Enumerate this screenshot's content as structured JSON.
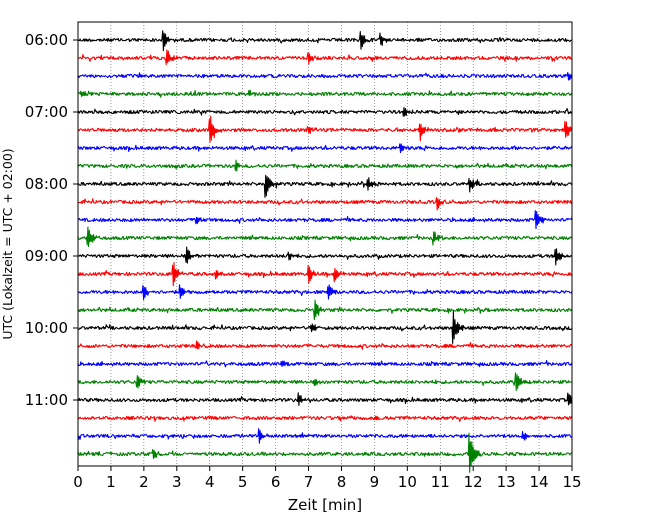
{
  "chart_data": {
    "type": "line",
    "subtype": "helicorder",
    "xlabel": "Zeit  [min]",
    "ylabel": "UTC (Lokalzeit = UTC + 02:00)",
    "xlim": [
      0,
      15
    ],
    "x_ticks": [
      "0",
      "1",
      "2",
      "3",
      "4",
      "5",
      "6",
      "7",
      "8",
      "9",
      "10",
      "11",
      "12",
      "13",
      "14",
      "15"
    ],
    "y_tick_labels": [
      "06:00",
      "07:00",
      "08:00",
      "09:00",
      "10:00",
      "11:00"
    ],
    "grid": "vertical-dotted",
    "row_colors": [
      "#000000",
      "#ff0000",
      "#0000ff",
      "#008000"
    ],
    "traces": [
      {
        "start": "06:00",
        "color": "#000000",
        "events": [
          {
            "min": 2.6,
            "amp": 0.6
          },
          {
            "min": 8.6,
            "amp": 0.6
          },
          {
            "min": 9.2,
            "amp": 0.35
          }
        ]
      },
      {
        "start": "06:15",
        "color": "#ff0000",
        "events": [
          {
            "min": 2.7,
            "amp": 0.55
          },
          {
            "min": 7.0,
            "amp": 0.35
          }
        ]
      },
      {
        "start": "06:30",
        "color": "#0000ff",
        "events": [
          {
            "min": 14.9,
            "amp": 0.3
          }
        ]
      },
      {
        "start": "06:45",
        "color": "#008000",
        "events": [
          {
            "min": 0.1,
            "amp": 0.3
          },
          {
            "min": 5.2,
            "amp": 0.25
          }
        ]
      },
      {
        "start": "07:00",
        "color": "#000000",
        "events": [
          {
            "min": 9.9,
            "amp": 0.3
          }
        ]
      },
      {
        "start": "07:15",
        "color": "#ff0000",
        "events": [
          {
            "min": 4.0,
            "amp": 1.0
          },
          {
            "min": 10.4,
            "amp": 0.6
          },
          {
            "min": 14.8,
            "amp": 0.6
          },
          {
            "min": 7.0,
            "amp": 0.3
          }
        ]
      },
      {
        "start": "07:30",
        "color": "#0000ff",
        "events": [
          {
            "min": 9.8,
            "amp": 0.25
          }
        ]
      },
      {
        "start": "07:45",
        "color": "#008000",
        "events": [
          {
            "min": 4.8,
            "amp": 0.3
          }
        ]
      },
      {
        "start": "08:00",
        "color": "#000000",
        "events": [
          {
            "min": 5.7,
            "amp": 0.9
          },
          {
            "min": 8.8,
            "amp": 0.5
          },
          {
            "min": 11.9,
            "amp": 0.45
          }
        ]
      },
      {
        "start": "08:15",
        "color": "#ff0000",
        "events": [
          {
            "min": 10.9,
            "amp": 0.5
          }
        ]
      },
      {
        "start": "08:30",
        "color": "#0000ff",
        "events": [
          {
            "min": 13.9,
            "amp": 0.8
          },
          {
            "min": 3.6,
            "amp": 0.3
          }
        ]
      },
      {
        "start": "08:45",
        "color": "#008000",
        "events": [
          {
            "min": 0.3,
            "amp": 0.8
          },
          {
            "min": 10.8,
            "amp": 0.5
          }
        ]
      },
      {
        "start": "09:00",
        "color": "#000000",
        "events": [
          {
            "min": 3.3,
            "amp": 0.55
          },
          {
            "min": 14.5,
            "amp": 0.6
          },
          {
            "min": 6.4,
            "amp": 0.3
          }
        ]
      },
      {
        "start": "09:15",
        "color": "#ff0000",
        "events": [
          {
            "min": 2.9,
            "amp": 0.85
          },
          {
            "min": 7.0,
            "amp": 0.55
          },
          {
            "min": 7.8,
            "amp": 0.5
          },
          {
            "min": 4.2,
            "amp": 0.35
          }
        ]
      },
      {
        "start": "09:30",
        "color": "#0000ff",
        "events": [
          {
            "min": 2.0,
            "amp": 0.55
          },
          {
            "min": 3.1,
            "amp": 0.45
          },
          {
            "min": 7.6,
            "amp": 0.6
          }
        ]
      },
      {
        "start": "09:45",
        "color": "#008000",
        "events": [
          {
            "min": 7.2,
            "amp": 0.65
          }
        ]
      },
      {
        "start": "10:00",
        "color": "#000000",
        "events": [
          {
            "min": 11.4,
            "amp": 1.1
          },
          {
            "min": 7.1,
            "amp": 0.3
          }
        ]
      },
      {
        "start": "10:15",
        "color": "#ff0000",
        "events": [
          {
            "min": 3.6,
            "amp": 0.3
          }
        ]
      },
      {
        "start": "10:30",
        "color": "#0000ff",
        "events": [
          {
            "min": 6.2,
            "amp": 0.25
          }
        ]
      },
      {
        "start": "10:45",
        "color": "#008000",
        "events": [
          {
            "min": 1.8,
            "amp": 0.5
          },
          {
            "min": 7.2,
            "amp": 0.35
          },
          {
            "min": 13.3,
            "amp": 0.7
          }
        ]
      },
      {
        "start": "11:00",
        "color": "#000000",
        "events": [
          {
            "min": 6.7,
            "amp": 0.45
          },
          {
            "min": 14.9,
            "amp": 0.4
          }
        ]
      },
      {
        "start": "11:15",
        "color": "#ff0000",
        "events": [
          {
            "min": 9.0,
            "amp": 0.2
          }
        ]
      },
      {
        "start": "11:30",
        "color": "#0000ff",
        "events": [
          {
            "min": 5.5,
            "amp": 0.55
          },
          {
            "min": 13.5,
            "amp": 0.3
          }
        ]
      },
      {
        "start": "11:45",
        "color": "#008000",
        "events": [
          {
            "min": 11.9,
            "amp": 1.4
          },
          {
            "min": 2.3,
            "amp": 0.3
          }
        ]
      }
    ]
  }
}
